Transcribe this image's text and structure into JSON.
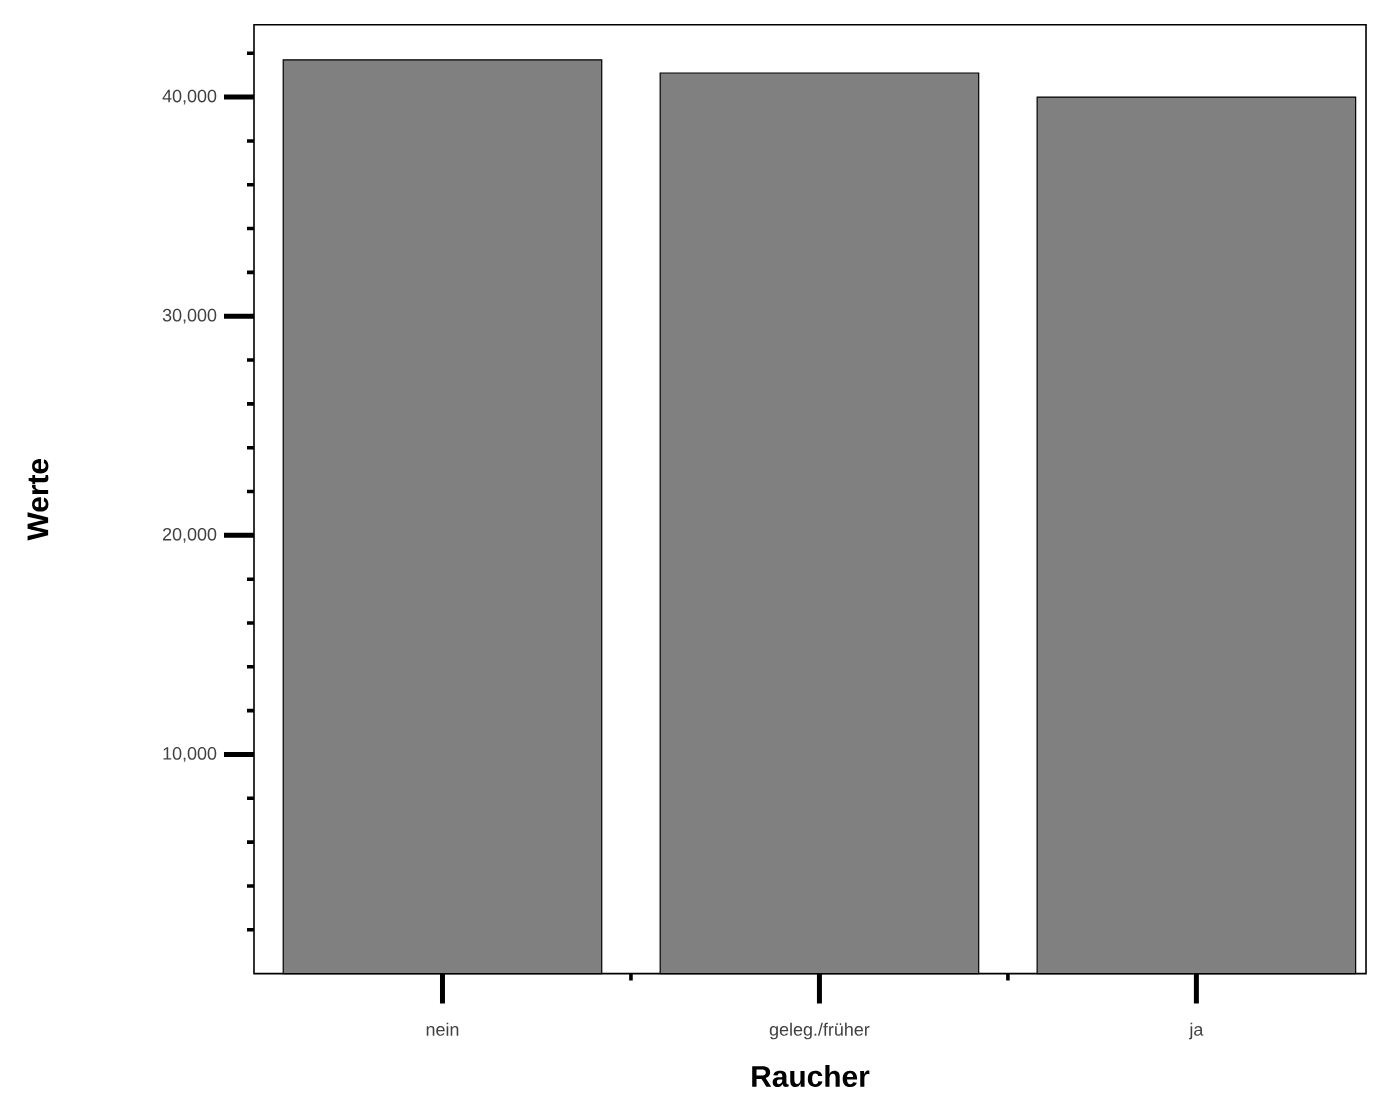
{
  "chart_data": {
    "type": "bar",
    "xlabel": "Raucher",
    "ylabel": "Werte",
    "categories": [
      "nein",
      "geleg./früher",
      "ja"
    ],
    "values": [
      41700,
      41100,
      40000
    ],
    "color": "#808080",
    "ylim": [
      0,
      43300
    ],
    "yticks": [
      {
        "value": 2000,
        "label": null
      },
      {
        "value": 4000,
        "label": null
      },
      {
        "value": 6000,
        "label": null
      },
      {
        "value": 8000,
        "label": null
      },
      {
        "value": 10000,
        "label": "10,000"
      },
      {
        "value": 12000,
        "label": null
      },
      {
        "value": 14000,
        "label": null
      },
      {
        "value": 16000,
        "label": null
      },
      {
        "value": 18000,
        "label": null
      },
      {
        "value": 20000,
        "label": "20,000"
      },
      {
        "value": 22000,
        "label": null
      },
      {
        "value": 24000,
        "label": null
      },
      {
        "value": 26000,
        "label": null
      },
      {
        "value": 28000,
        "label": null
      },
      {
        "value": 30000,
        "label": "30,000"
      },
      {
        "value": 32000,
        "label": null
      },
      {
        "value": 34000,
        "label": null
      },
      {
        "value": 36000,
        "label": null
      },
      {
        "value": 38000,
        "label": null
      },
      {
        "value": 40000,
        "label": "40,000"
      },
      {
        "value": 42000,
        "label": null
      }
    ],
    "grid": false
  }
}
